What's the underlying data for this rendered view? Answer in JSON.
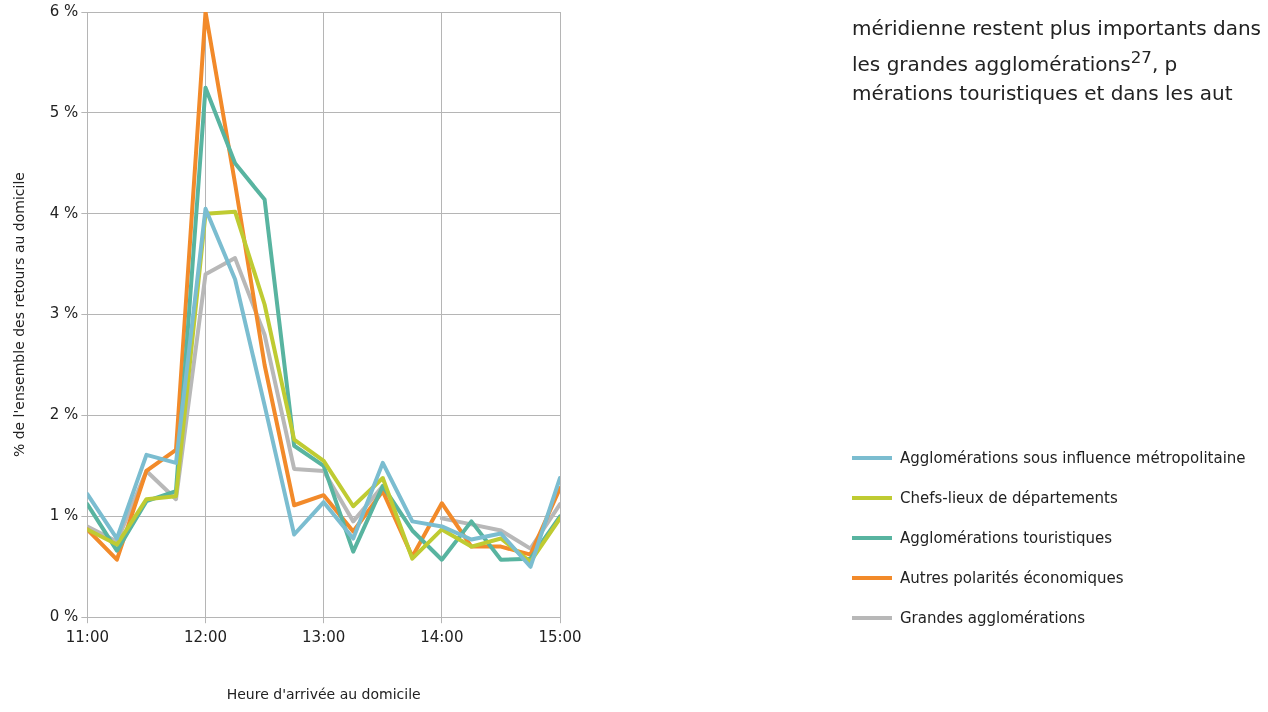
{
  "chart_data": {
    "type": "line",
    "xlabel": "Heure d'arrivée au domicile",
    "ylabel": "% de l'ensemble des retours au domicile",
    "x": [
      11,
      11.25,
      11.5,
      11.75,
      12,
      12.25,
      12.5,
      12.75,
      13,
      13.25,
      13.5,
      13.75,
      14,
      14.25,
      14.5,
      14.75,
      15
    ],
    "xlim": [
      11,
      15
    ],
    "xticks": [
      {
        "value": 11,
        "label": "11:00"
      },
      {
        "value": 12,
        "label": "12:00"
      },
      {
        "value": 13,
        "label": "13:00"
      },
      {
        "value": 14,
        "label": "14:00"
      },
      {
        "value": 15,
        "label": "15:00"
      }
    ],
    "ylim": [
      0,
      6
    ],
    "yticks": [
      {
        "value": 0,
        "label": "0 %"
      },
      {
        "value": 1,
        "label": "1 %"
      },
      {
        "value": 2,
        "label": "2 %"
      },
      {
        "value": 3,
        "label": "3 %"
      },
      {
        "value": 4,
        "label": "4 %"
      },
      {
        "value": 5,
        "label": "5 %"
      },
      {
        "value": 6,
        "label": "6 %"
      }
    ],
    "grid": true,
    "legend": "right",
    "marker": "none",
    "line_style": "solid",
    "series": [
      {
        "name": "Agglomérations sous influence métropolitaine",
        "color": "#7bbdd0",
        "values": [
          1.22,
          0.78,
          1.61,
          1.53,
          4.05,
          3.35,
          2.1,
          0.82,
          1.14,
          0.78,
          1.53,
          0.95,
          0.9,
          0.77,
          0.83,
          0.5,
          1.38
        ]
      },
      {
        "name": "Chefs-lieux de départements",
        "color": "#bfcb32",
        "values": [
          0.87,
          0.72,
          1.17,
          1.2,
          4.0,
          4.02,
          3.1,
          1.76,
          1.55,
          1.1,
          1.38,
          0.58,
          0.87,
          0.7,
          0.78,
          0.55,
          0.98
        ]
      },
      {
        "name": "Agglomérations touristiques",
        "color": "#58b4a0",
        "values": [
          1.12,
          0.66,
          1.15,
          1.25,
          5.25,
          4.5,
          4.14,
          1.7,
          1.5,
          0.65,
          1.3,
          0.86,
          0.57,
          0.95,
          0.57,
          0.58,
          1.0
        ]
      },
      {
        "name": "Autres polarités économiques",
        "color": "#f28a2a",
        "values": [
          0.87,
          0.57,
          1.45,
          1.66,
          6.0,
          4.3,
          2.5,
          1.11,
          1.21,
          0.85,
          1.25,
          0.6,
          1.13,
          0.7,
          0.7,
          0.62,
          1.28
        ]
      },
      {
        "name": "Grandes agglomérations",
        "color": "#b8b8b8",
        "values": [
          0.9,
          0.75,
          1.45,
          1.17,
          3.4,
          3.56,
          2.8,
          1.47,
          1.45,
          0.95,
          1.3,
          null,
          0.98,
          0.92,
          0.86,
          0.68,
          1.12
        ]
      }
    ],
    "annotations": [
      "méridienne restent plus importants dans les grandes agglomérations$^{27}$, p mérations touristiques et dans les aut"
    ]
  }
}
